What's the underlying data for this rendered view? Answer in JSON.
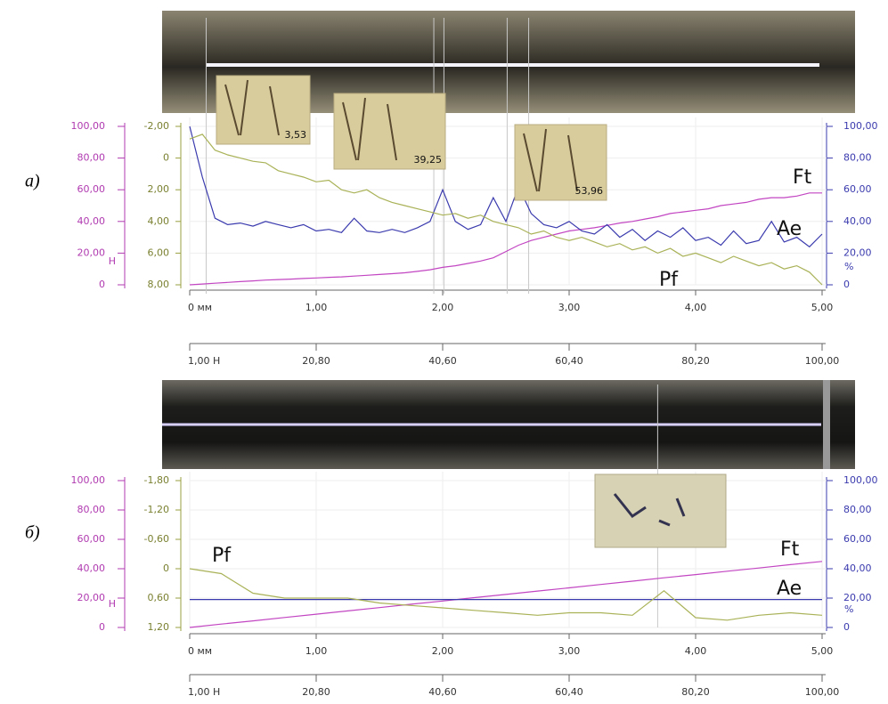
{
  "chart_data": [
    {
      "type": "line",
      "panel_label": "а)",
      "y_unit": "Н",
      "y2_unit": "%",
      "xlim": [
        0,
        5
      ],
      "xticks": [
        {
          "value": 0,
          "label": "0  мм"
        },
        {
          "value": 1,
          "label": "1,00"
        },
        {
          "value": 2,
          "label": "2,00"
        },
        {
          "value": 3,
          "label": "3,00"
        },
        {
          "value": 4,
          "label": "4,00"
        },
        {
          "value": 5,
          "label": "5,00"
        }
      ],
      "x2lim": [
        1,
        100
      ],
      "x2ticks": [
        {
          "value": 1,
          "label": "1,00  Н"
        },
        {
          "value": 20.8,
          "label": "20,80"
        },
        {
          "value": 40.6,
          "label": "40,60"
        },
        {
          "value": 60.4,
          "label": "60,40"
        },
        {
          "value": 80.2,
          "label": "80,20"
        },
        {
          "value": 100,
          "label": "100,00"
        }
      ],
      "ylim": [
        0,
        100
      ],
      "yticks": [
        0,
        {
          "value": 20,
          "label": "20,00"
        },
        {
          "value": 40,
          "label": "40,00"
        },
        {
          "value": 60,
          "label": "60,00"
        },
        {
          "value": 80,
          "label": "80,00"
        },
        {
          "value": 100,
          "label": "100,00"
        }
      ],
      "y2lim": [
        0,
        100
      ],
      "y2ticks": [
        0,
        {
          "value": 20,
          "label": "20,00"
        },
        {
          "value": 40,
          "label": "40,00"
        },
        {
          "value": 60,
          "label": "60,00"
        },
        {
          "value": 80,
          "label": "80,00"
        },
        {
          "value": 100,
          "label": "100,00"
        }
      ],
      "y3lim": [
        8,
        -2
      ],
      "y3ticks": [
        {
          "value": -2,
          "label": "-2,00"
        },
        0,
        {
          "value": 2,
          "label": "2,00"
        },
        {
          "value": 4,
          "label": "4,00"
        },
        {
          "value": 6,
          "label": "6,00"
        },
        {
          "value": 8,
          "label": "8,00"
        }
      ],
      "markers": [
        0.13,
        1.93,
        2.01,
        2.51,
        2.68
      ],
      "insets": [
        "3,53",
        "39,25",
        "53,96"
      ],
      "x": [
        0,
        0.1,
        0.2,
        0.3,
        0.4,
        0.5,
        0.6,
        0.7,
        0.8,
        0.9,
        1,
        1.1,
        1.2,
        1.3,
        1.4,
        1.5,
        1.6,
        1.7,
        1.8,
        1.9,
        2,
        2.1,
        2.2,
        2.3,
        2.4,
        2.5,
        2.6,
        2.7,
        2.8,
        2.9,
        3,
        3.1,
        3.2,
        3.3,
        3.4,
        3.5,
        3.6,
        3.7,
        3.8,
        3.9,
        4,
        4.1,
        4.2,
        4.3,
        4.4,
        4.5,
        4.6,
        4.7,
        4.8,
        4.9,
        5
      ],
      "series": [
        {
          "name": "Ft",
          "color": "#c245c2",
          "axis": "y",
          "values": [
            0,
            0.5,
            1,
            1.5,
            2,
            2.5,
            3,
            3.3,
            3.6,
            4,
            4.3,
            4.7,
            5,
            5.5,
            6,
            6.5,
            7,
            7.6,
            8.5,
            9.5,
            11,
            12,
            13.5,
            15,
            17,
            21,
            25,
            28,
            30,
            32,
            34,
            35,
            36,
            37.5,
            39,
            40,
            41.5,
            43,
            45,
            46,
            47,
            48,
            50,
            51,
            52,
            54,
            55,
            55,
            56,
            58,
            58
          ]
        },
        {
          "name": "Ae",
          "color": "#3a3aae",
          "axis": "y2",
          "values": [
            100,
            68,
            42,
            38,
            39,
            37,
            40,
            38,
            36,
            38,
            34,
            35,
            33,
            42,
            34,
            33,
            35,
            33,
            36,
            40,
            60,
            40,
            35,
            38,
            55,
            40,
            62,
            45,
            38,
            36,
            40,
            34,
            32,
            38,
            30,
            35,
            28,
            34,
            30,
            36,
            28,
            30,
            25,
            34,
            26,
            28,
            40,
            27,
            30,
            24,
            32
          ]
        },
        {
          "name": "Pf",
          "color": "#a9b257",
          "axis": "y3",
          "values": [
            -1.2,
            -1.5,
            -0.5,
            -0.2,
            0,
            0.2,
            0.3,
            0.8,
            1,
            1.2,
            1.5,
            1.4,
            2,
            2.2,
            2,
            2.5,
            2.8,
            3,
            3.2,
            3.4,
            3.6,
            3.5,
            3.8,
            3.6,
            4,
            4.2,
            4.4,
            4.8,
            4.6,
            5,
            5.2,
            5,
            5.3,
            5.6,
            5.4,
            5.8,
            5.6,
            6,
            5.7,
            6.2,
            6,
            6.3,
            6.6,
            6.2,
            6.5,
            6.8,
            6.6,
            7,
            6.8,
            7.2,
            8
          ]
        }
      ]
    },
    {
      "type": "line",
      "panel_label": "б)",
      "y_unit": "Н",
      "y2_unit": "%",
      "xlim": [
        0,
        5
      ],
      "xticks": [
        {
          "value": 0,
          "label": "0  мм"
        },
        {
          "value": 1,
          "label": "1,00"
        },
        {
          "value": 2,
          "label": "2,00"
        },
        {
          "value": 3,
          "label": "3,00"
        },
        {
          "value": 4,
          "label": "4,00"
        },
        {
          "value": 5,
          "label": "5,00"
        }
      ],
      "x2lim": [
        1,
        100
      ],
      "x2ticks": [
        {
          "value": 1,
          "label": "1,00  Н"
        },
        {
          "value": 20.8,
          "label": "20,80"
        },
        {
          "value": 40.6,
          "label": "40,60"
        },
        {
          "value": 60.4,
          "label": "60,40"
        },
        {
          "value": 80.2,
          "label": "80,20"
        },
        {
          "value": 100,
          "label": "100,00"
        }
      ],
      "ylim": [
        0,
        100
      ],
      "yticks": [
        0,
        {
          "value": 20,
          "label": "20,00"
        },
        {
          "value": 40,
          "label": "40,00"
        },
        {
          "value": 60,
          "label": "60,00"
        },
        {
          "value": 80,
          "label": "80,00"
        },
        {
          "value": 100,
          "label": "100,00"
        }
      ],
      "y2lim": [
        0,
        100
      ],
      "y2ticks": [
        0,
        {
          "value": 20,
          "label": "20,00"
        },
        {
          "value": 40,
          "label": "40,00"
        },
        {
          "value": 60,
          "label": "60,00"
        },
        {
          "value": 80,
          "label": "80,00"
        },
        {
          "value": 100,
          "label": "100,00"
        }
      ],
      "y3lim": [
        1.2,
        -1.8
      ],
      "y3ticks": [
        {
          "value": -1.8,
          "label": "-1,80"
        },
        {
          "value": -1.2,
          "label": "-1,20"
        },
        {
          "value": -0.6,
          "label": "-0,60"
        },
        0,
        {
          "value": 0.6,
          "label": "0,60"
        },
        {
          "value": 1.2,
          "label": "1,20"
        }
      ],
      "markers": [
        3.7
      ],
      "x": [
        0,
        0.25,
        0.5,
        0.75,
        1,
        1.25,
        1.5,
        1.75,
        2,
        2.25,
        2.5,
        2.75,
        3,
        3.25,
        3.5,
        3.75,
        4,
        4.25,
        4.5,
        4.75,
        5
      ],
      "series": [
        {
          "name": "Ft",
          "color": "#c245c2",
          "axis": "y",
          "values": [
            0,
            2.3,
            4.5,
            6.8,
            9,
            11.3,
            13.5,
            15.8,
            18,
            20.3,
            22.5,
            24.8,
            27,
            29.3,
            31.5,
            33.8,
            36,
            38.3,
            40.5,
            42.8,
            45
          ]
        },
        {
          "name": "Ae",
          "color": "#3a3aae",
          "axis": "y2",
          "values": [
            19,
            19,
            19,
            19,
            19,
            19,
            19,
            19,
            19,
            19,
            19,
            19,
            19,
            19,
            19,
            19,
            19,
            19,
            19,
            19,
            19
          ]
        },
        {
          "name": "Pf",
          "color": "#a9b257",
          "axis": "y3",
          "values": [
            0,
            0.1,
            0.5,
            0.6,
            0.6,
            0.6,
            0.7,
            0.75,
            0.8,
            0.85,
            0.9,
            0.95,
            0.9,
            0.9,
            0.95,
            0.45,
            1,
            1.05,
            0.95,
            0.9,
            0.95
          ]
        }
      ]
    }
  ]
}
